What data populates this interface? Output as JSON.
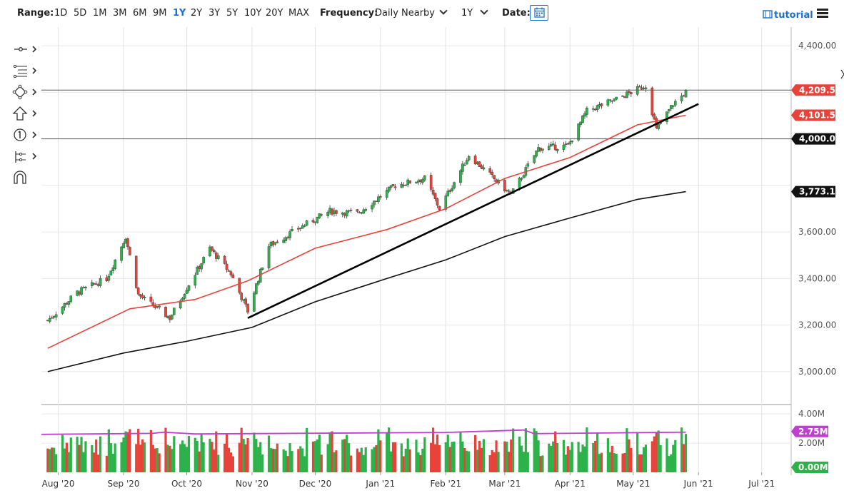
{
  "toolbar": {
    "range_label": "Range:",
    "ranges": [
      "1D",
      "5D",
      "1M",
      "3M",
      "6M",
      "9M",
      "1Y",
      "2Y",
      "3Y",
      "5Y",
      "10Y",
      "20Y",
      "MAX"
    ],
    "active_range": "1Y",
    "frequency_label": "Frequency:",
    "frequency_value": "Daily Nearby",
    "period_value": "1Y",
    "date_label": "Date:",
    "tutorial_label": "tutorial"
  },
  "drawing_tools": [
    "crosshair-icon",
    "fibonacci-icon",
    "pattern-icon",
    "arrow-up-icon",
    "number-marker-icon",
    "measure-icon",
    "magnet-icon"
  ],
  "colors": {
    "up": "#2db24a",
    "down": "#e8433a",
    "ma50": "#e8433a",
    "ma200": "#111111",
    "volume_ma": "#c13fd0",
    "accent": "#1f6fd1"
  },
  "chart_data": {
    "type": "candlestick",
    "x_ticks": [
      "Aug '20",
      "Sep '20",
      "Oct '20",
      "Nov '20",
      "Dec '20",
      "Jan '21",
      "Feb '21",
      "Mar '21",
      "Apr '21",
      "May '21",
      "Jun '21",
      "Jul '21"
    ],
    "price_axis": {
      "ticks": [
        "4,400.00",
        "3,600.00",
        "3,400.00",
        "3,200.00",
        "3,000.00"
      ],
      "range": [
        2880,
        4480
      ]
    },
    "price_series": [
      {
        "date": "2020-07-27",
        "close": 3220
      },
      {
        "date": "2020-08-10",
        "close": 3340
      },
      {
        "date": "2020-08-24",
        "close": 3400
      },
      {
        "date": "2020-09-02",
        "close": 3580
      },
      {
        "date": "2020-09-08",
        "close": 3330
      },
      {
        "date": "2020-09-23",
        "close": 3230
      },
      {
        "date": "2020-10-01",
        "close": 3360
      },
      {
        "date": "2020-10-12",
        "close": 3530
      },
      {
        "date": "2020-10-22",
        "close": 3420
      },
      {
        "date": "2020-10-30",
        "close": 3260
      },
      {
        "date": "2020-11-09",
        "close": 3540
      },
      {
        "date": "2020-11-24",
        "close": 3620
      },
      {
        "date": "2020-12-08",
        "close": 3690
      },
      {
        "date": "2020-12-21",
        "close": 3680
      },
      {
        "date": "2021-01-08",
        "close": 3800
      },
      {
        "date": "2021-01-22",
        "close": 3830
      },
      {
        "date": "2021-01-29",
        "close": 3700
      },
      {
        "date": "2021-02-12",
        "close": 3930
      },
      {
        "date": "2021-02-26",
        "close": 3810
      },
      {
        "date": "2021-03-04",
        "close": 3760
      },
      {
        "date": "2021-03-17",
        "close": 3960
      },
      {
        "date": "2021-03-31",
        "close": 3970
      },
      {
        "date": "2021-04-09",
        "close": 4120
      },
      {
        "date": "2021-04-23",
        "close": 4170
      },
      {
        "date": "2021-05-07",
        "close": 4230
      },
      {
        "date": "2021-05-12",
        "close": 4040
      },
      {
        "date": "2021-05-20",
        "close": 4150
      },
      {
        "date": "2021-05-26",
        "close": 4200
      }
    ],
    "ma50": [
      {
        "date": "2020-07-27",
        "value": 3100
      },
      {
        "date": "2020-09-04",
        "value": 3270
      },
      {
        "date": "2020-10-05",
        "value": 3310
      },
      {
        "date": "2020-10-30",
        "value": 3390
      },
      {
        "date": "2020-12-01",
        "value": 3530
      },
      {
        "date": "2021-01-04",
        "value": 3610
      },
      {
        "date": "2021-02-01",
        "value": 3700
      },
      {
        "date": "2021-03-01",
        "value": 3830
      },
      {
        "date": "2021-04-01",
        "value": 3920
      },
      {
        "date": "2021-05-03",
        "value": 4060
      },
      {
        "date": "2021-05-26",
        "value": 4101.5
      }
    ],
    "ma200": [
      {
        "date": "2020-07-27",
        "value": 3000
      },
      {
        "date": "2020-09-01",
        "value": 3080
      },
      {
        "date": "2020-10-01",
        "value": 3130
      },
      {
        "date": "2020-11-01",
        "value": 3190
      },
      {
        "date": "2020-12-01",
        "value": 3300
      },
      {
        "date": "2021-01-04",
        "value": 3400
      },
      {
        "date": "2021-02-01",
        "value": 3480
      },
      {
        "date": "2021-03-01",
        "value": 3580
      },
      {
        "date": "2021-04-01",
        "value": 3660
      },
      {
        "date": "2021-05-03",
        "value": 3740
      },
      {
        "date": "2021-05-26",
        "value": 3773.13
      }
    ],
    "trendline": {
      "start": {
        "date": "2020-10-30",
        "value": 3230
      },
      "end": {
        "date": "2021-06-01",
        "value": 4150
      }
    },
    "horizontal_lines": [
      4209.5,
      4000
    ],
    "price_labels": [
      {
        "text": "4,209.50",
        "value": 4209.5,
        "color": "#e8433a"
      },
      {
        "text": "4,101.50",
        "value": 4101.5,
        "color": "#e8433a"
      },
      {
        "text": "4,000.00",
        "value": 4000,
        "color": "#111111"
      },
      {
        "text": "3,773.13",
        "value": 3773.13,
        "color": "#111111"
      }
    ],
    "volume_axis": {
      "ticks": [
        "4.00M",
        "2.00M"
      ],
      "range": [
        0,
        4.4
      ]
    },
    "volume_ma_value": 2.75,
    "volume_labels": [
      {
        "text": "2.75M",
        "color": "#c13fd0"
      },
      {
        "text": "0.00M",
        "color": "#2db24a"
      }
    ]
  }
}
